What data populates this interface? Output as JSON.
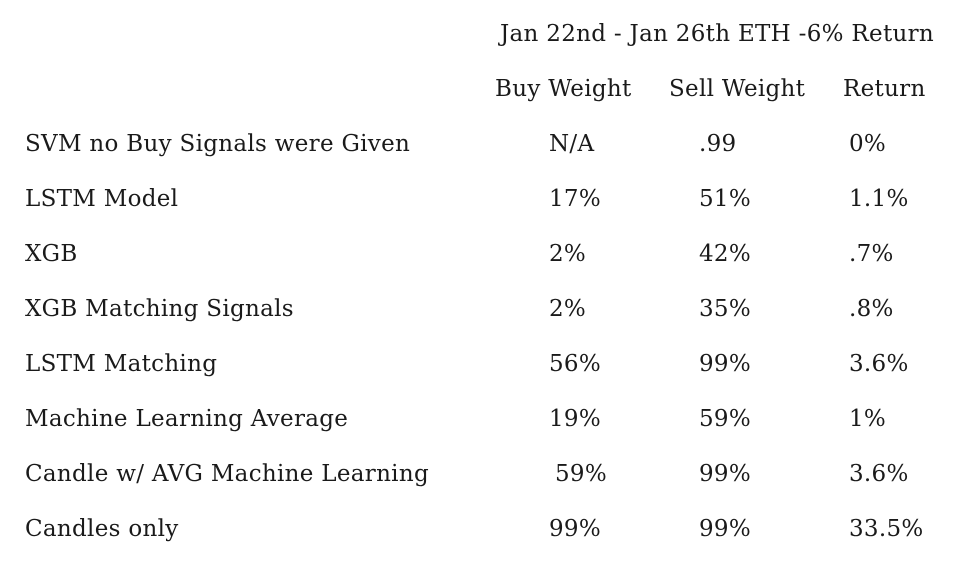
{
  "title": "Jan 22nd - Jan 26th ETH -6% Return",
  "headers": {
    "buy": "Buy Weight",
    "sell": "Sell Weight",
    "ret": "Return"
  },
  "rows": [
    {
      "label": "SVM no Buy Signals were Given",
      "buy": "N/A",
      "sell": ".99",
      "ret": "0%"
    },
    {
      "label": "LSTM Model",
      "buy": "17%",
      "sell": "51%",
      "ret": "1.1%"
    },
    {
      "label": "XGB",
      "buy": "2%",
      "sell": "42%",
      "ret": ".7%"
    },
    {
      "label": "XGB Matching Signals",
      "buy": "2%",
      "sell": "35%",
      "ret": ".8%"
    },
    {
      "label": "LSTM Matching",
      "buy": "56%",
      "sell": "99%",
      "ret": "3.6%"
    },
    {
      "label": "Machine Learning Average",
      "buy": "19%",
      "sell": "59%",
      "ret": "1%"
    },
    {
      "label": "Candle w/ AVG Machine Learning",
      "buy": "59%",
      "sell": "99%",
      "ret": "3.6%"
    },
    {
      "label": "Candles only",
      "buy": "99%",
      "sell": "99%",
      "ret": "33.5%"
    }
  ]
}
